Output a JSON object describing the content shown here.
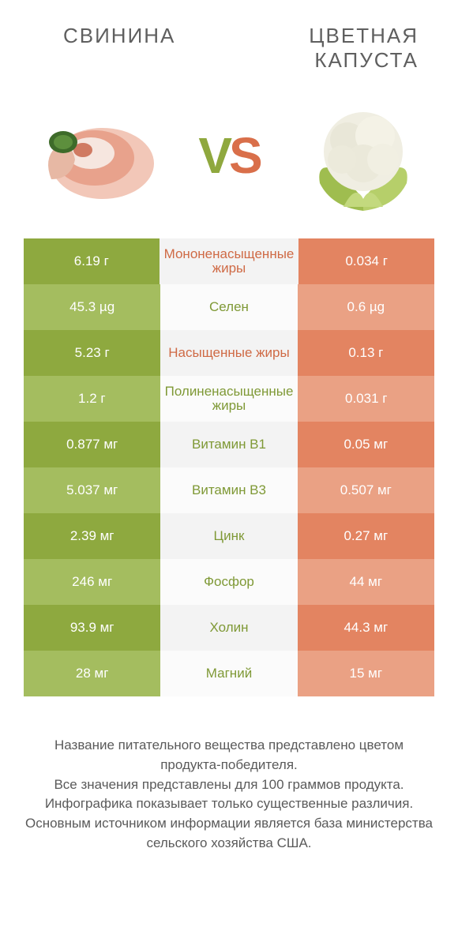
{
  "header": {
    "left_title": "СВИНИНА",
    "right_title_line1": "ЦВЕТНАЯ",
    "right_title_line2": "КАПУСТА",
    "vs_v": "V",
    "vs_s": "S"
  },
  "colors": {
    "green_dark": "#8ea93f",
    "green_light": "#a4bd5f",
    "orange_dark": "#e38461",
    "orange_light": "#eaa184",
    "mid_odd": "#f3f3f3",
    "mid_even": "#fbfbfb",
    "mid_text_green": "#7f9936",
    "mid_text_orange": "#cf6a45",
    "title_color": "#5f5f5f"
  },
  "rows": [
    {
      "left": "6.19 г",
      "mid": "Мононенасыщенные жиры",
      "mid_color": "orange",
      "right": "0.034 г"
    },
    {
      "left": "45.3 µg",
      "mid": "Селен",
      "mid_color": "green",
      "right": "0.6 µg"
    },
    {
      "left": "5.23 г",
      "mid": "Насыщенные жиры",
      "mid_color": "orange",
      "right": "0.13 г"
    },
    {
      "left": "1.2 г",
      "mid": "Полиненасыщенные жиры",
      "mid_color": "green",
      "right": "0.031 г"
    },
    {
      "left": "0.877 мг",
      "mid": "Витамин B1",
      "mid_color": "green",
      "right": "0.05 мг"
    },
    {
      "left": "5.037 мг",
      "mid": "Витамин B3",
      "mid_color": "green",
      "right": "0.507 мг"
    },
    {
      "left": "2.39 мг",
      "mid": "Цинк",
      "mid_color": "green",
      "right": "0.27 мг"
    },
    {
      "left": "246 мг",
      "mid": "Фосфор",
      "mid_color": "green",
      "right": "44 мг"
    },
    {
      "left": "93.9 мг",
      "mid": "Холин",
      "mid_color": "green",
      "right": "44.3 мг"
    },
    {
      "left": "28 мг",
      "mid": "Магний",
      "mid_color": "green",
      "right": "15 мг"
    }
  ],
  "footnote": {
    "l1": "Название питательного вещества представлено цветом продукта-победителя.",
    "l2": "Все значения представлены для 100 граммов продукта.",
    "l3": "Инфографика показывает только существенные различия.",
    "l4": "Основным источником информации является база министерства сельского хозяйства США."
  }
}
